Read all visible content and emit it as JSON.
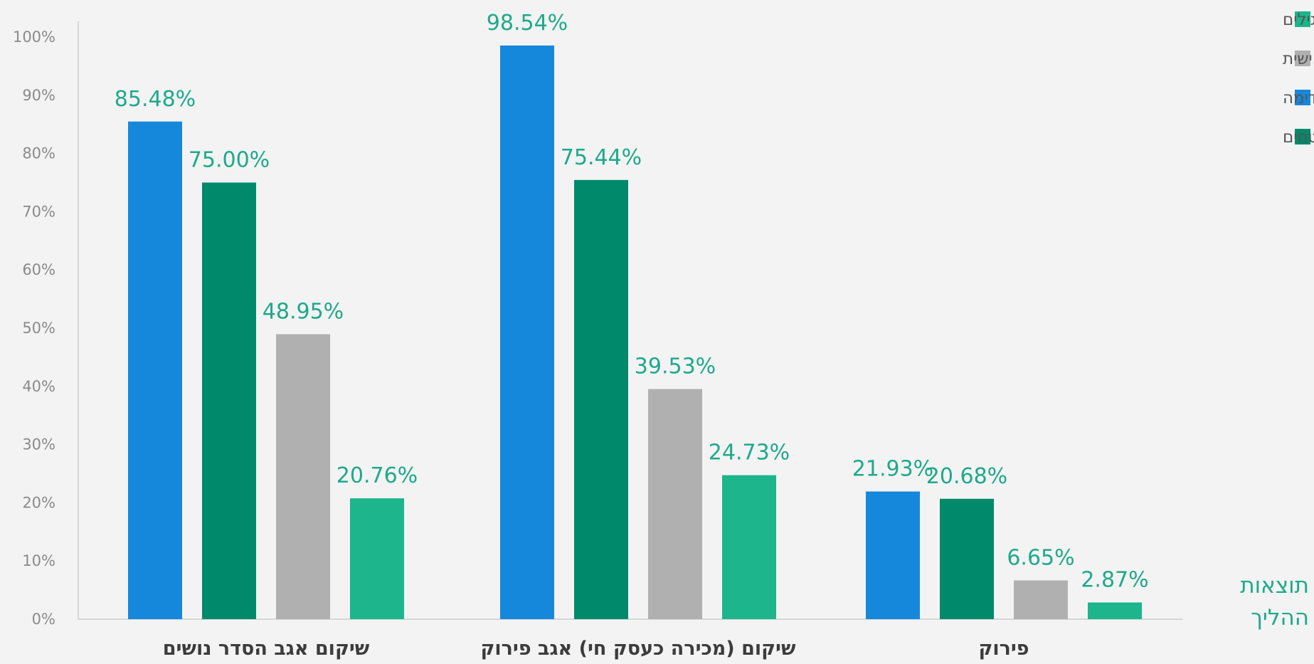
{
  "chart_data": {
    "type": "bar",
    "categories": [
      "שיקום אגב הסדר נושים",
      "שיקום (מכירה כעסק חי) אגב פירוק",
      "פירוק"
    ],
    "series": [
      {
        "name": "נושים בדין קדימה",
        "color": "#1688dc",
        "values": [
          85.48,
          98.54,
          21.93
        ],
        "labels": [
          "85.48%",
          "98.54%",
          "21.93%"
        ]
      },
      {
        "name": "נושים מובטחים",
        "color": "#00896a",
        "values": [
          75.0,
          75.44,
          20.68
        ],
        "labels": [
          "75.00%",
          "75.44%",
          "20.68%"
        ]
      },
      {
        "name": "נושים רגילים עם ערבות אישית",
        "color": "#b0b0b0",
        "values": [
          48.95,
          39.53,
          6.65
        ],
        "labels": [
          "48.95%",
          "39.53%",
          "6.65%"
        ]
      },
      {
        "name": "נושים רגילים",
        "color": "#1db58c",
        "values": [
          20.76,
          24.73,
          2.87
        ],
        "labels": [
          "20.76%",
          "24.73%",
          "2.87%"
        ]
      }
    ],
    "legend_order": [
      "נושים רגילים",
      "נושים רגילים עם ערבות אישית",
      "נושים בדין קדימה",
      "נושים מובטחים"
    ],
    "legend_placement": "top-right",
    "y_ticks": [
      "0%",
      "10%",
      "20%",
      "30%",
      "40%",
      "50%",
      "60%",
      "70%",
      "80%",
      "90%",
      "100%"
    ],
    "ylim": [
      0,
      100
    ],
    "grid": false,
    "side_title": [
      "תוצאות",
      "ההליך"
    ],
    "label_color": "#1ea98a"
  }
}
